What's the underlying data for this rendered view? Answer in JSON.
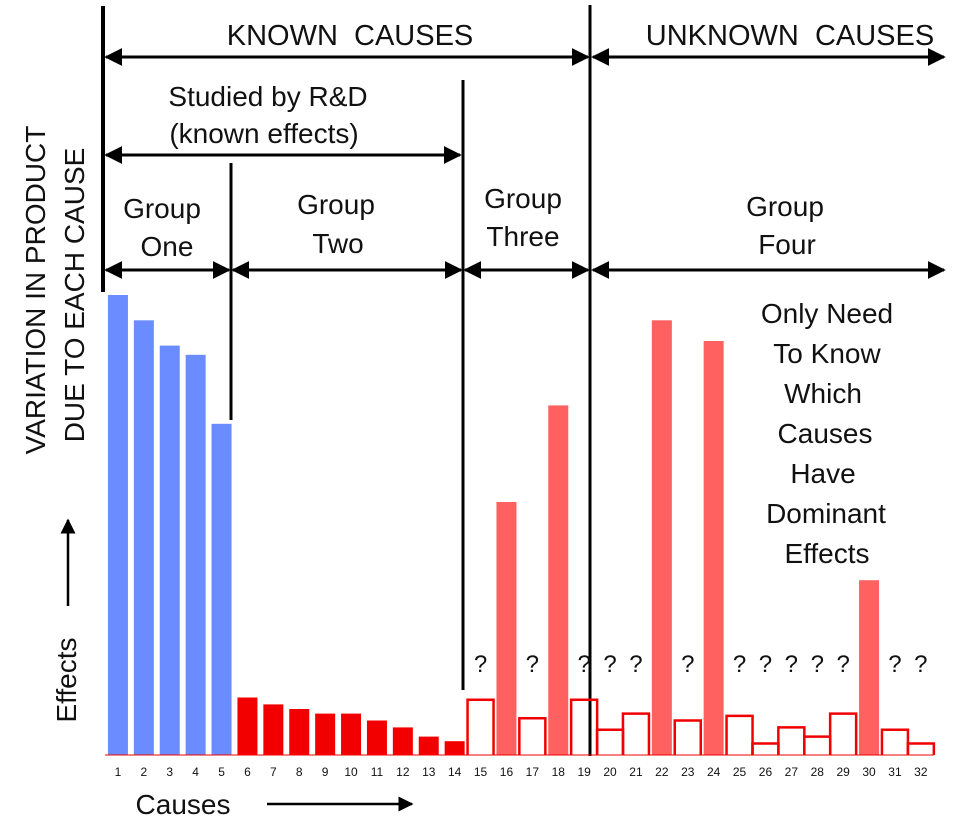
{
  "chart_data": {
    "type": "bar",
    "ylabel_lines": [
      "VARIATION IN PRODUCT",
      "DUE TO EACH CAUSE"
    ],
    "effects_label": "Effects",
    "xlabel": "Causes",
    "known_label": "KNOWN  CAUSES",
    "unknown_label": "UNKNOWN  CAUSES",
    "rd_label_lines": [
      "Studied by R&D",
      "(known effects)"
    ],
    "groups": [
      {
        "lines": [
          "Group",
          "One"
        ]
      },
      {
        "lines": [
          "Group",
          "Two"
        ]
      },
      {
        "lines": [
          "Group",
          "Three"
        ]
      },
      {
        "lines": [
          "Group",
          "Four"
        ]
      }
    ],
    "note_lines": [
      "Only Need",
      "To Know",
      "Which",
      "Causes",
      "Have",
      "Dominant",
      "Effects"
    ],
    "unknown_mark": "?",
    "categories": [
      "1",
      "2",
      "3",
      "4",
      "5",
      "6",
      "7",
      "8",
      "9",
      "10",
      "11",
      "12",
      "13",
      "14",
      "15",
      "16",
      "17",
      "18",
      "19",
      "20",
      "21",
      "22",
      "23",
      "24",
      "25",
      "26",
      "27",
      "28",
      "29",
      "30",
      "31",
      "32"
    ],
    "values": [
      100,
      94.5,
      89,
      87,
      72,
      12.5,
      11,
      10,
      9,
      9,
      7.5,
      6,
      4,
      3,
      12,
      55,
      8,
      76,
      12,
      5.5,
      9,
      94.5,
      7.5,
      90,
      8.5,
      2.5,
      6,
      4,
      9,
      38,
      5.5,
      2.5
    ],
    "bar_kind": [
      "known",
      "known",
      "known",
      "known",
      "known",
      "known",
      "known",
      "known",
      "known",
      "known",
      "known",
      "known",
      "known",
      "known",
      "unknown",
      "revealed",
      "unknown",
      "revealed",
      "unknown",
      "unknown",
      "unknown",
      "revealed",
      "unknown",
      "revealed",
      "unknown",
      "unknown",
      "unknown",
      "unknown",
      "unknown",
      "revealed",
      "unknown",
      "unknown"
    ],
    "question_marks": [
      15,
      17,
      19,
      20,
      21,
      23,
      25,
      26,
      27,
      28,
      29,
      31,
      32
    ],
    "colors": {
      "group_one": "#6b8cff",
      "group_two": "#f20000",
      "unknown": "#ff6060"
    }
  }
}
